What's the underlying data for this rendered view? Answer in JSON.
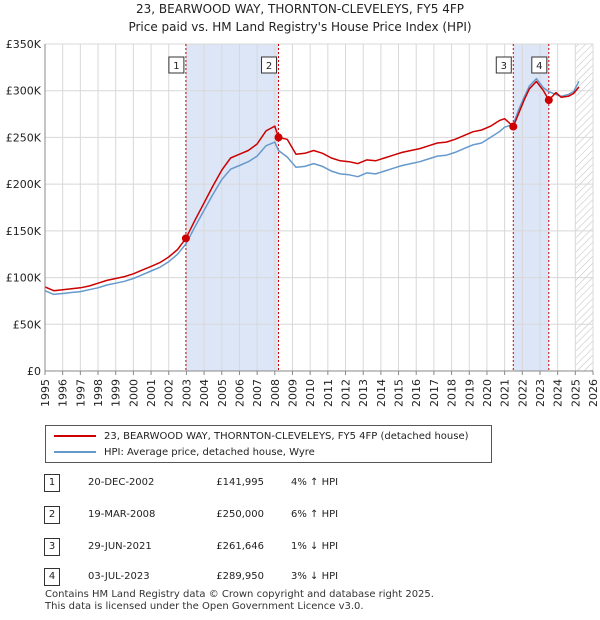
{
  "title_line1": "23, BEARWOOD WAY, THORNTON-CLEVELEYS, FY5 4FP",
  "title_line2": "Price paid vs. HM Land Registry's House Price Index (HPI)",
  "legend": {
    "property_label": "23, BEARWOOD WAY, THORNTON-CLEVELEYS, FY5 4FP (detached house)",
    "hpi_label": "HPI: Average price, detached house, Wyre"
  },
  "colors": {
    "property": "#cc0000",
    "hpi": "#6699cc",
    "shade": "#dde6f7",
    "grid": "#d8d8d8",
    "marker_border": "#333333"
  },
  "sales": [
    {
      "num": "1",
      "date": "20-DEC-2002",
      "price": "£141,995",
      "hpi_change": "4% ↑ HPI"
    },
    {
      "num": "2",
      "date": "19-MAR-2008",
      "price": "£250,000",
      "hpi_change": "6% ↑ HPI"
    },
    {
      "num": "3",
      "date": "29-JUN-2021",
      "price": "£261,646",
      "hpi_change": "1% ↓ HPI"
    },
    {
      "num": "4",
      "date": "03-JUL-2023",
      "price": "£289,950",
      "hpi_change": "3% ↓ HPI"
    }
  ],
  "footer_line1": "Contains HM Land Registry data © Crown copyright and database right 2025.",
  "footer_line2": "This data is licensed under the Open Government Licence v3.0.",
  "chart_data": {
    "type": "line",
    "title": "23, BEARWOOD WAY, THORNTON-CLEVELEYS, FY5 4FP",
    "subtitle": "Price paid vs. HM Land Registry's House Price Index (HPI)",
    "xlabel": "",
    "ylabel": "",
    "xlim": [
      1995,
      2026
    ],
    "ylim": [
      0,
      350000
    ],
    "x_ticks": [
      1995,
      1996,
      1997,
      1998,
      1999,
      2000,
      2001,
      2002,
      2003,
      2004,
      2005,
      2006,
      2007,
      2008,
      2009,
      2010,
      2011,
      2012,
      2013,
      2014,
      2015,
      2016,
      2017,
      2018,
      2019,
      2020,
      2021,
      2022,
      2023,
      2024,
      2025,
      2026
    ],
    "y_ticks": [
      0,
      50000,
      100000,
      150000,
      200000,
      250000,
      300000,
      350000
    ],
    "y_tick_labels": [
      "£0",
      "£50K",
      "£100K",
      "£150K",
      "£200K",
      "£250K",
      "£300K",
      "£350K"
    ],
    "grid": true,
    "legend_position": "bottom",
    "shaded_periods": [
      [
        2002.97,
        2008.21
      ],
      [
        2021.49,
        2023.5
      ]
    ],
    "future_hatch_from": 2025.0,
    "sale_markers": [
      {
        "label": "1",
        "x": 2002.97,
        "y": 141995
      },
      {
        "label": "2",
        "x": 2008.21,
        "y": 250000
      },
      {
        "label": "3",
        "x": 2021.49,
        "y": 261646
      },
      {
        "label": "4",
        "x": 2023.5,
        "y": 289950
      }
    ],
    "series": [
      {
        "name": "23, BEARWOOD WAY, THORNTON-CLEVELEYS, FY5 4FP (detached house)",
        "x": [
          1995.0,
          1995.5,
          1996.0,
          1996.5,
          1997.0,
          1997.5,
          1998.0,
          1998.5,
          1999.0,
          1999.5,
          2000.0,
          2000.5,
          2001.0,
          2001.5,
          2002.0,
          2002.5,
          2002.97,
          2003.5,
          2004.0,
          2004.5,
          2005.0,
          2005.5,
          2006.0,
          2006.5,
          2007.0,
          2007.5,
          2008.0,
          2008.21,
          2008.7,
          2009.2,
          2009.7,
          2010.2,
          2010.7,
          2011.2,
          2011.7,
          2012.2,
          2012.7,
          2013.2,
          2013.7,
          2014.2,
          2014.7,
          2015.2,
          2015.7,
          2016.2,
          2016.7,
          2017.2,
          2017.7,
          2018.2,
          2018.7,
          2019.2,
          2019.7,
          2020.2,
          2020.7,
          2021.0,
          2021.49,
          2021.8,
          2022.1,
          2022.4,
          2022.8,
          2023.2,
          2023.5,
          2023.9,
          2024.2,
          2024.6,
          2024.9,
          2025.2
        ],
        "values": [
          90000,
          86000,
          87000,
          88000,
          89000,
          91000,
          94000,
          97000,
          99000,
          101000,
          104000,
          108000,
          112000,
          116000,
          122000,
          130000,
          141995,
          162000,
          180000,
          198000,
          215000,
          228000,
          232000,
          236000,
          243000,
          257000,
          262000,
          250000,
          248000,
          232000,
          233000,
          236000,
          233000,
          228000,
          225000,
          224000,
          222000,
          226000,
          225000,
          228000,
          231000,
          234000,
          236000,
          238000,
          241000,
          244000,
          245000,
          248000,
          252000,
          256000,
          258000,
          262000,
          268000,
          270000,
          261646,
          276000,
          290000,
          302000,
          310000,
          300000,
          289950,
          298000,
          293000,
          294000,
          297000,
          304000
        ]
      },
      {
        "name": "HPI: Average price, detached house, Wyre",
        "x": [
          1995.0,
          1995.5,
          1996.0,
          1996.5,
          1997.0,
          1997.5,
          1998.0,
          1998.5,
          1999.0,
          1999.5,
          2000.0,
          2000.5,
          2001.0,
          2001.5,
          2002.0,
          2002.5,
          2002.97,
          2003.5,
          2004.0,
          2004.5,
          2005.0,
          2005.5,
          2006.0,
          2006.5,
          2007.0,
          2007.5,
          2008.0,
          2008.21,
          2008.7,
          2009.2,
          2009.7,
          2010.2,
          2010.7,
          2011.2,
          2011.7,
          2012.2,
          2012.7,
          2013.2,
          2013.7,
          2014.2,
          2014.7,
          2015.2,
          2015.7,
          2016.2,
          2016.7,
          2017.2,
          2017.7,
          2018.2,
          2018.7,
          2019.2,
          2019.7,
          2020.2,
          2020.7,
          2021.0,
          2021.49,
          2021.8,
          2022.1,
          2022.4,
          2022.8,
          2023.2,
          2023.5,
          2023.9,
          2024.2,
          2024.6,
          2024.9,
          2025.2
        ],
        "values": [
          86000,
          82000,
          83000,
          84000,
          85000,
          87000,
          89000,
          92000,
          94000,
          96000,
          99000,
          103000,
          107000,
          111000,
          117000,
          125000,
          136000,
          155000,
          172000,
          189000,
          205000,
          216000,
          220000,
          224000,
          230000,
          241000,
          245000,
          236000,
          229000,
          218000,
          219000,
          222000,
          219000,
          214000,
          211000,
          210000,
          208000,
          212000,
          211000,
          214000,
          217000,
          220000,
          222000,
          224000,
          227000,
          230000,
          231000,
          234000,
          238000,
          242000,
          244000,
          250000,
          256000,
          261000,
          264000,
          280000,
          293000,
          305000,
          313000,
          303000,
          299000,
          296000,
          294000,
          296000,
          299000,
          310000
        ]
      }
    ]
  }
}
